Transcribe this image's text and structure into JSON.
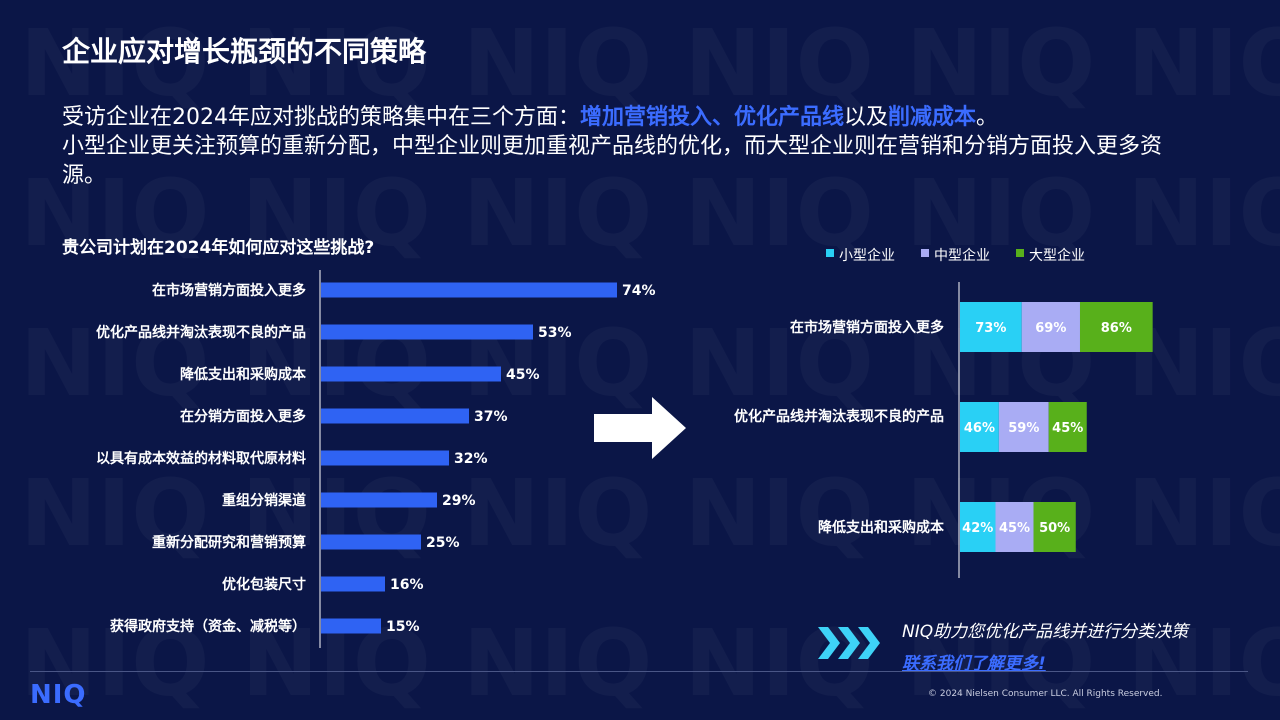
{
  "header": {
    "title": "企业应对增长瓶颈的不同策略",
    "intro_part1": "受访企业在2024年应对挑战的策略集中在三个方面：",
    "intro_highlight1": "增加营销投入、优化产品线",
    "intro_part2": "以及",
    "intro_highlight2": "削减成本",
    "intro_part3": "。",
    "intro_line2": "小型企业更关注预算的重新分配，中型企业则更加重视产品线的优化，而大型企业则在营销和分销方面投入更多资源。"
  },
  "question": "贵公司计划在2024年如何应对这些挑战?",
  "chart_data": [
    {
      "type": "bar",
      "orientation": "horizontal",
      "title": "贵公司计划在2024年如何应对这些挑战?",
      "categories": [
        "在市场营销方面投入更多",
        "优化产品线并淘汰表现不良的产品",
        "降低支出和采购成本",
        "在分销方面投入更多",
        "以具有成本效益的材料取代原材料",
        "重组分销渠道",
        "重新分配研究和营销预算",
        "优化包装尺寸",
        "获得政府支持（资金、减税等）"
      ],
      "values": [
        74,
        53,
        45,
        37,
        32,
        29,
        25,
        16,
        15
      ],
      "value_labels": [
        "74%",
        "53%",
        "45%",
        "37%",
        "32%",
        "29%",
        "25%",
        "16%",
        "15%"
      ],
      "xlim": [
        0,
        100
      ],
      "color": "#2f63f3"
    },
    {
      "type": "bar",
      "orientation": "horizontal",
      "stacked": true,
      "categories": [
        "在市场营销方面投入更多",
        "优化产品线并淘汰表现不良的产品",
        "降低支出和采购成本"
      ],
      "series": [
        {
          "name": "小型企业",
          "color": "#29d0f5",
          "values": [
            73,
            46,
            42
          ],
          "labels": [
            "73%",
            "46%",
            "42%"
          ]
        },
        {
          "name": "中型企业",
          "color": "#a9acf4",
          "values": [
            69,
            59,
            45
          ],
          "labels": [
            "69%",
            "59%",
            "45%"
          ]
        },
        {
          "name": "大型企业",
          "color": "#58b01b",
          "values": [
            86,
            45,
            50
          ],
          "labels": [
            "86%",
            "45%",
            "50%"
          ]
        }
      ],
      "legend_position": "top"
    }
  ],
  "footer": {
    "cta_text": "NIQ助力您优化产品线并进行分类决策",
    "cta_link": "联系我们了解更多!",
    "logo": "NIQ",
    "copyright": "© 2024 Nielsen Consumer LLC. All Rights Reserved."
  },
  "colors": {
    "background": "#0b1647",
    "accent": "#3b6cff",
    "bar": "#2f63f3"
  }
}
